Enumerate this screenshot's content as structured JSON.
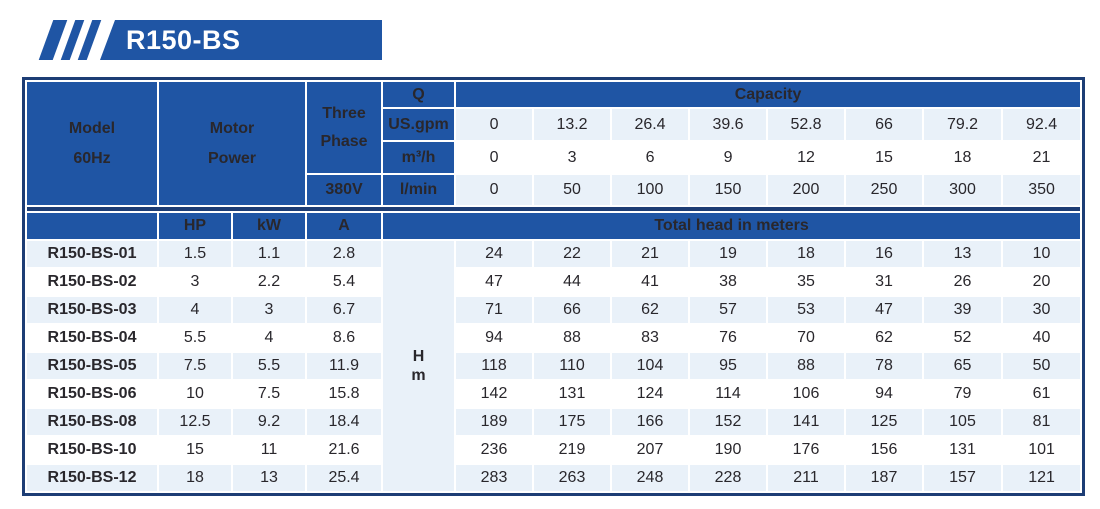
{
  "banner": {
    "title": "R150-BS"
  },
  "colors": {
    "blue": "#1f55a4",
    "navy": "#1d3d75",
    "row_light": "#e9f1f9",
    "row_white": "#ffffff",
    "text_dark": "#29272c"
  },
  "table": {
    "header": {
      "model_line1": "Model",
      "model_line2": "60Hz",
      "motor_line1": "Motor",
      "motor_line2": "Power",
      "three_phase_line1": "Three",
      "three_phase_line2": "Phase",
      "voltage": "380V",
      "q": "Q",
      "capacity": "Capacity",
      "flow_units": [
        "US.gpm",
        "m³/h",
        "l/min"
      ],
      "hp": "HP",
      "kw": "kW",
      "a": "A",
      "total_head": "Total head in meters",
      "head_unit_line1": "H",
      "head_unit_line2": "m"
    },
    "capacity_rows": {
      "us_gpm": [
        "0",
        "13.2",
        "26.4",
        "39.6",
        "52.8",
        "66",
        "79.2",
        "92.4"
      ],
      "m3_h": [
        "0",
        "3",
        "6",
        "9",
        "12",
        "15",
        "18",
        "21"
      ],
      "l_min": [
        "0",
        "50",
        "100",
        "150",
        "200",
        "250",
        "300",
        "350"
      ]
    },
    "rows": [
      {
        "model": "R150-BS-01",
        "hp": "1.5",
        "kw": "1.1",
        "a": "2.8",
        "head": [
          "24",
          "22",
          "21",
          "19",
          "18",
          "16",
          "13",
          "10"
        ]
      },
      {
        "model": "R150-BS-02",
        "hp": "3",
        "kw": "2.2",
        "a": "5.4",
        "head": [
          "47",
          "44",
          "41",
          "38",
          "35",
          "31",
          "26",
          "20"
        ]
      },
      {
        "model": "R150-BS-03",
        "hp": "4",
        "kw": "3",
        "a": "6.7",
        "head": [
          "71",
          "66",
          "62",
          "57",
          "53",
          "47",
          "39",
          "30"
        ]
      },
      {
        "model": "R150-BS-04",
        "hp": "5.5",
        "kw": "4",
        "a": "8.6",
        "head": [
          "94",
          "88",
          "83",
          "76",
          "70",
          "62",
          "52",
          "40"
        ]
      },
      {
        "model": "R150-BS-05",
        "hp": "7.5",
        "kw": "5.5",
        "a": "11.9",
        "head": [
          "118",
          "110",
          "104",
          "95",
          "88",
          "78",
          "65",
          "50"
        ]
      },
      {
        "model": "R150-BS-06",
        "hp": "10",
        "kw": "7.5",
        "a": "15.8",
        "head": [
          "142",
          "131",
          "124",
          "114",
          "106",
          "94",
          "79",
          "61"
        ]
      },
      {
        "model": "R150-BS-08",
        "hp": "12.5",
        "kw": "9.2",
        "a": "18.4",
        "head": [
          "189",
          "175",
          "166",
          "152",
          "141",
          "125",
          "105",
          "81"
        ]
      },
      {
        "model": "R150-BS-10",
        "hp": "15",
        "kw": "11",
        "a": "21.6",
        "head": [
          "236",
          "219",
          "207",
          "190",
          "176",
          "156",
          "131",
          "101"
        ]
      },
      {
        "model": "R150-BS-12",
        "hp": "18",
        "kw": "13",
        "a": "25.4",
        "head": [
          "283",
          "263",
          "248",
          "228",
          "211",
          "187",
          "157",
          "121"
        ]
      }
    ]
  }
}
